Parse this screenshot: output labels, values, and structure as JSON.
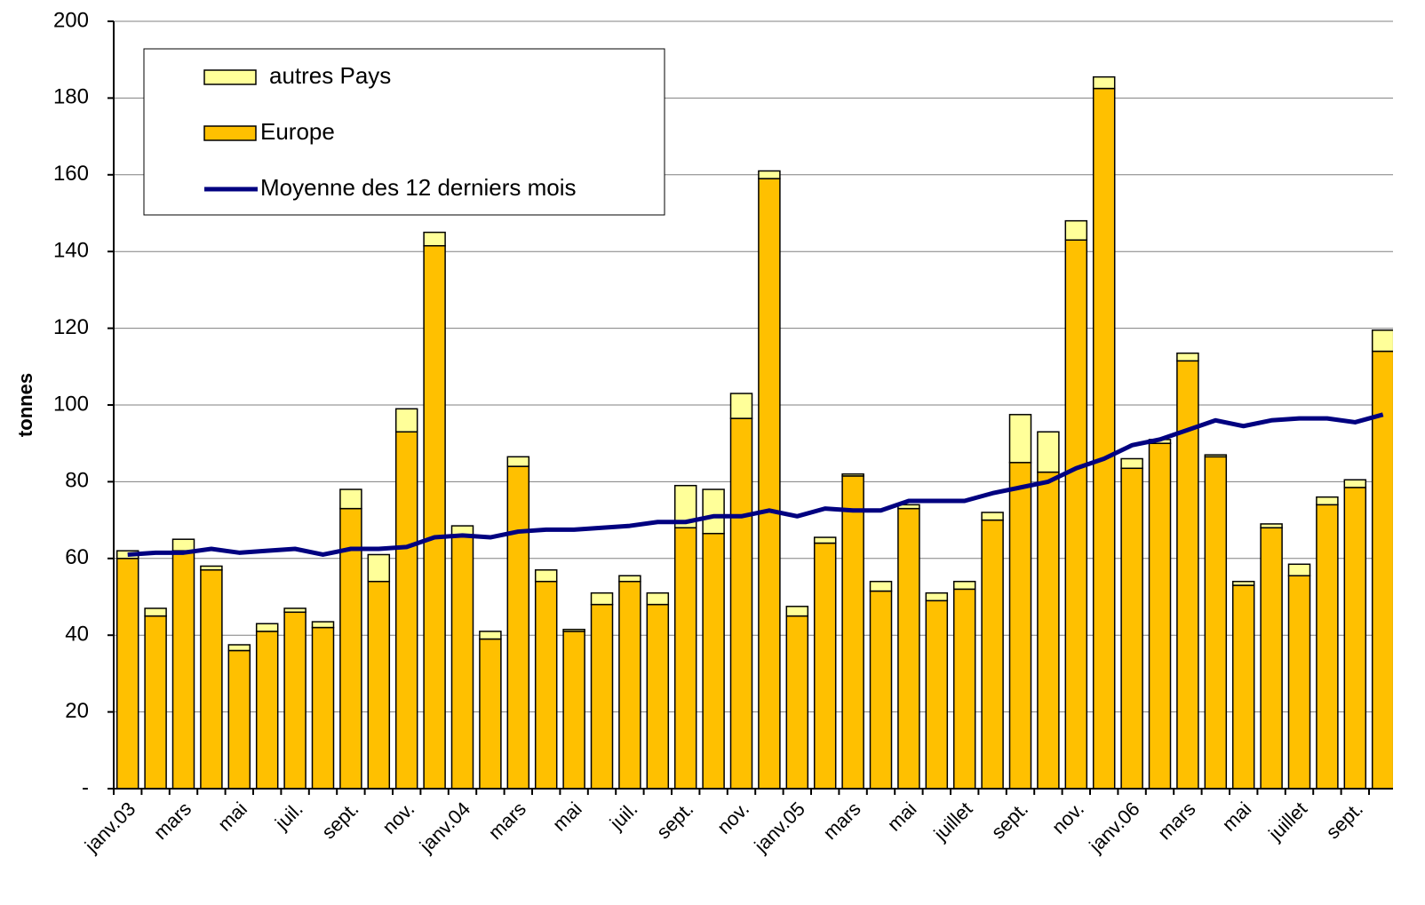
{
  "chart_data": {
    "type": "bar",
    "stacked": true,
    "y_label": "tonnes",
    "categories": [
      "janv.03",
      null,
      "mars",
      null,
      "mai",
      null,
      "juil.",
      null,
      "sept.",
      null,
      "nov.",
      null,
      "janv.04",
      null,
      "mars",
      null,
      "mai",
      null,
      "juil.",
      null,
      "sept.",
      null,
      "nov.",
      null,
      "janv.05",
      null,
      "mars",
      null,
      "mai",
      null,
      "juillet",
      null,
      "sept.",
      null,
      "nov.",
      null,
      "janv.06",
      null,
      "mars",
      null,
      "mai",
      null,
      "juillet",
      null,
      "sept.",
      null
    ],
    "series": [
      {
        "name": "autres Pays",
        "type": "bar",
        "color": "#ffff99",
        "values": [
          2,
          2,
          3,
          1,
          1.5,
          2,
          1,
          1.5,
          5,
          7,
          6,
          3.5,
          2.5,
          2,
          2.5,
          3,
          0.5,
          3,
          1.5,
          3,
          11,
          11.5,
          6.5,
          2,
          2.5,
          1.5,
          0.5,
          2.5,
          1,
          2,
          2,
          2,
          12.5,
          10.5,
          5,
          3,
          2.5,
          1,
          2,
          0.5,
          1,
          1,
          3,
          2,
          2,
          5.5
        ]
      },
      {
        "name": "Europe",
        "type": "bar",
        "color": "#ffc000",
        "values": [
          60,
          45,
          62,
          57,
          36,
          41,
          46,
          42,
          73,
          54,
          93,
          141.5,
          66,
          39,
          84,
          54,
          41,
          48,
          54,
          48,
          68,
          66.5,
          96.5,
          159,
          45,
          64,
          81.5,
          51.5,
          73,
          49,
          52,
          70,
          85,
          82.5,
          143,
          182.5,
          83.5,
          90,
          111.5,
          86.5,
          53,
          68,
          55.5,
          74,
          78.5,
          114
        ]
      },
      {
        "name": "Moyenne des 12 derniers mois",
        "type": "line",
        "color": "#000080",
        "values": [
          61,
          61.5,
          61.5,
          62.5,
          61.5,
          62,
          62.5,
          61,
          62.5,
          62.5,
          63,
          65.5,
          66,
          65.5,
          67,
          67.5,
          67.5,
          68,
          68.5,
          69.5,
          69.5,
          71,
          71,
          72.5,
          71,
          73,
          72.5,
          72.5,
          75,
          75,
          75,
          77,
          78.5,
          80,
          83.5,
          86,
          89.5,
          91,
          93.5,
          96,
          94.5,
          96,
          96.5,
          96.5,
          95.5,
          97.5
        ]
      }
    ],
    "ylim": [
      0,
      200
    ],
    "yticks": [
      {
        "value": 0,
        "label": "-"
      },
      20,
      40,
      60,
      80,
      100,
      120,
      140,
      160,
      180,
      200
    ],
    "grid": true
  }
}
